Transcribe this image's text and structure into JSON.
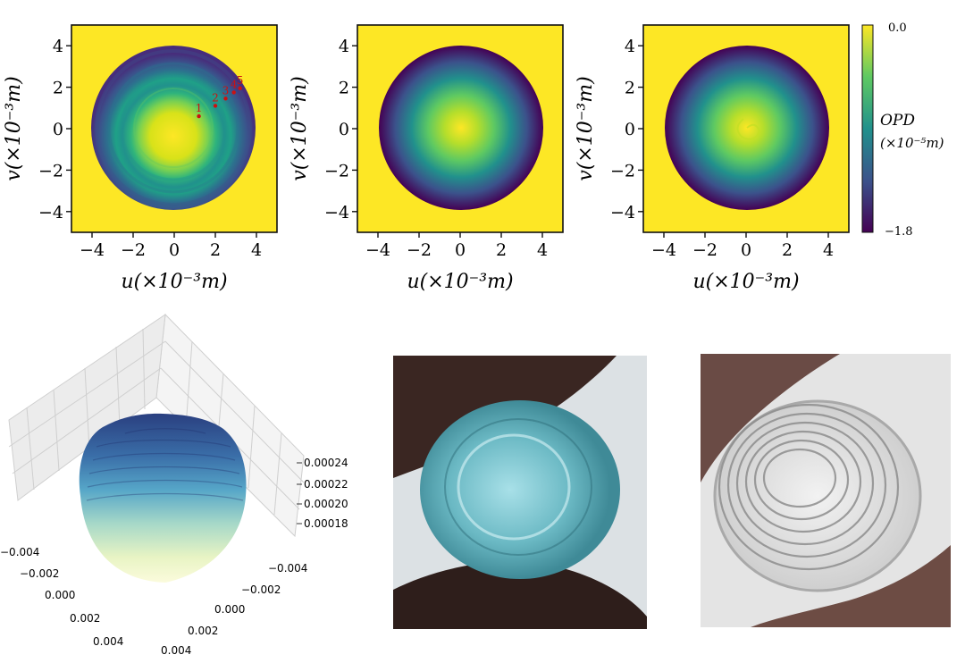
{
  "chart_data": [
    {
      "type": "heatmap",
      "panel": "top-left",
      "xlabel": "u(×10⁻³m)",
      "ylabel": "v(×10⁻³m)",
      "xlim": [
        -5,
        5
      ],
      "ylim": [
        -5,
        5
      ],
      "xticks": [
        "−4",
        "−2",
        "0",
        "2",
        "4"
      ],
      "yticks": [
        "4",
        "2",
        "0",
        "−2",
        "−4"
      ],
      "pattern": "concentric rings with swirl",
      "annotations": [
        {
          "label": "1",
          "u": 1.2,
          "v": 0.6
        },
        {
          "label": "2",
          "u": 2.0,
          "v": 1.1
        },
        {
          "label": "3",
          "u": 2.5,
          "v": 1.45
        },
        {
          "label": "4",
          "u": 2.9,
          "v": 1.75
        },
        {
          "label": "5",
          "u": 3.2,
          "v": 1.95
        }
      ]
    },
    {
      "type": "heatmap",
      "panel": "top-middle",
      "xlabel": "u(×10⁻³m)",
      "ylabel": "v(×10⁻³m)",
      "xlim": [
        -5,
        5
      ],
      "ylim": [
        -5,
        5
      ],
      "xticks": [
        "−4",
        "−2",
        "0",
        "2",
        "4"
      ],
      "yticks": [
        "4",
        "2",
        "0",
        "−2",
        "−4"
      ],
      "pattern": "smooth radial"
    },
    {
      "type": "heatmap",
      "panel": "top-right",
      "xlabel": "u(×10⁻³m)",
      "ylabel": "v(×10⁻³m)",
      "xlim": [
        -5,
        5
      ],
      "ylim": [
        -5,
        5
      ],
      "xticks": [
        "−4",
        "−2",
        "0",
        "2",
        "4"
      ],
      "yticks": [
        "4",
        "2",
        "0",
        "−2",
        "−4"
      ],
      "pattern": "radial with small swirl",
      "colorbar": {
        "label_1": "OPD",
        "label_2": "(×10⁻⁵m)",
        "max": "0.0",
        "min": "−1.8",
        "max_value": 0.0,
        "min_value": -1.8
      }
    },
    {
      "type": "surface",
      "panel": "bottom-left",
      "z_ticks": [
        "0.00024",
        "0.00022",
        "0.00020",
        "0.00018"
      ],
      "x_ticks": [
        "−0.004",
        "−0.002",
        "0.000",
        "0.002",
        "0.004"
      ],
      "y_ticks": [
        "−0.004",
        "−0.002",
        "0.000",
        "0.002",
        "0.004"
      ]
    }
  ],
  "colors": {
    "background": "#fde725",
    "viridis": [
      "#440154",
      "#3b528b",
      "#21918c",
      "#5ec962",
      "#fde725"
    ],
    "annotation": "#cc1111"
  },
  "photos": [
    {
      "name": "lens-photo-blue"
    },
    {
      "name": "lens-photo-clear"
    }
  ]
}
